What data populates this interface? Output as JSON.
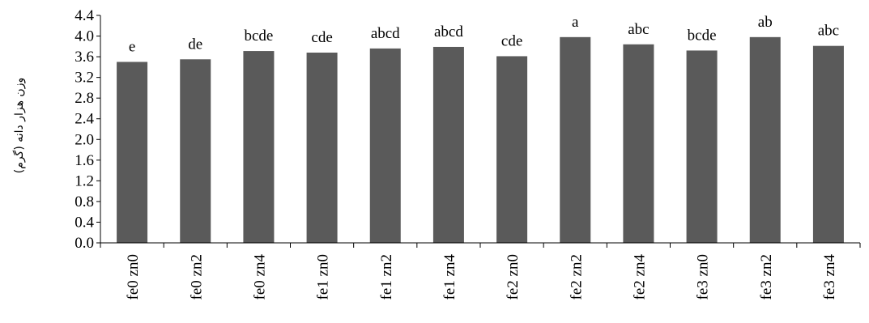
{
  "chart_data": {
    "type": "bar",
    "title": "",
    "xlabel": "",
    "ylabel": "وزن هزار دانه (گرم)",
    "ylim": [
      0,
      4.4
    ],
    "y_ticks": [
      "0.0",
      "0.4",
      "0.8",
      "1.2",
      "1.6",
      "2.0",
      "2.4",
      "2.8",
      "3.2",
      "3.6",
      "4.0",
      "4.4"
    ],
    "categories": [
      "fe0 zn0",
      "fe0 zn2",
      "fe0 zn4",
      "fe1 zn0",
      "fe1 zn2",
      "fe1 zn4",
      "fe2 zn0",
      "fe2 zn2",
      "fe2 zn4",
      "fe3 zn0",
      "fe3 zn2",
      "fe3 zn4"
    ],
    "values": [
      3.5,
      3.55,
      3.71,
      3.68,
      3.76,
      3.79,
      3.61,
      3.98,
      3.84,
      3.72,
      3.98,
      3.81
    ],
    "labels": [
      "e",
      "de",
      "bcde",
      "cde",
      "abcd",
      "abcd",
      "cde",
      "a",
      "abc",
      "bcde",
      "ab",
      "abc"
    ],
    "grid": false,
    "legend": "none",
    "bar_color": "#5a5a5a"
  }
}
